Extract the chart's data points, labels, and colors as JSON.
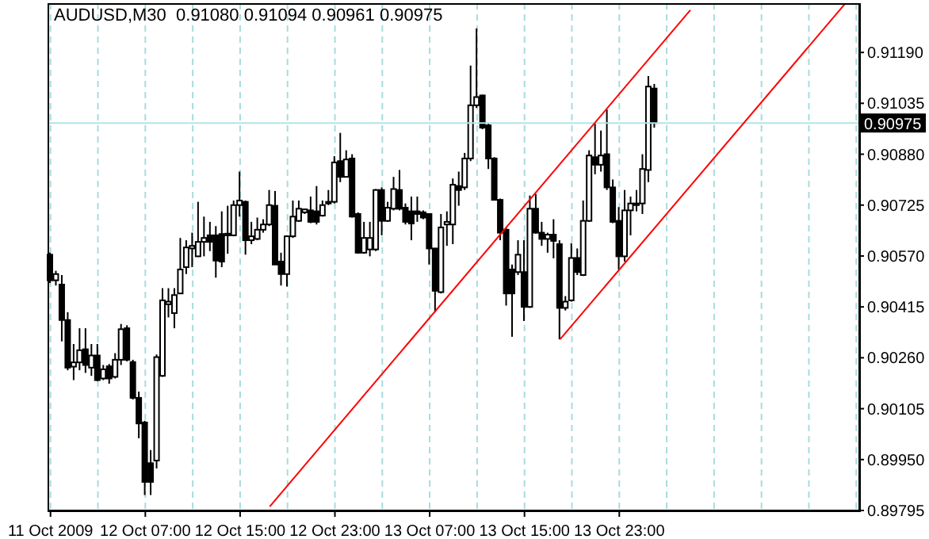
{
  "chart_data": {
    "type": "candlestick",
    "title": "AUDUSD,M30  0.91080 0.91094 0.90961 0.90975",
    "categories": [
      "11 Oct 2009",
      null,
      null,
      null,
      null,
      null,
      null,
      null,
      null,
      null,
      null,
      null,
      null,
      null,
      null,
      null,
      "12 Oct 07:00",
      null,
      null,
      null,
      null,
      null,
      null,
      null,
      null,
      null,
      null,
      null,
      null,
      null,
      null,
      null,
      "12 Oct 15:00",
      null,
      null,
      null,
      null,
      null,
      null,
      null,
      null,
      null,
      null,
      null,
      null,
      null,
      null,
      null,
      "12 Oct 23:00",
      null,
      null,
      null,
      null,
      null,
      null,
      null,
      null,
      null,
      null,
      null,
      null,
      null,
      null,
      null,
      "13 Oct 07:00",
      null,
      null,
      null,
      null,
      null,
      null,
      null,
      null,
      null,
      null,
      null,
      null,
      null,
      null,
      null,
      "13 Oct 15:00",
      null,
      null,
      null,
      null,
      null,
      null,
      null,
      null,
      null,
      null,
      null,
      null,
      null,
      null,
      null,
      "13 Oct 23:00",
      null,
      null,
      null,
      null,
      null,
      null,
      null,
      null,
      null,
      null,
      null,
      null,
      null,
      null,
      null,
      null,
      null,
      null,
      null,
      null,
      null,
      null,
      null,
      null,
      null,
      null,
      null,
      null,
      null,
      null,
      null,
      null,
      null,
      null,
      null,
      null,
      null,
      null,
      null,
      null
    ],
    "ohlc": [
      [
        0.90574,
        0.9058,
        0.90488,
        0.90496
      ],
      [
        0.90496,
        0.90525,
        0.9048,
        0.90515
      ],
      [
        0.90483,
        0.90512,
        0.9031,
        0.90375
      ],
      [
        0.90375,
        0.90399,
        0.90222,
        0.9023
      ],
      [
        0.90233,
        0.90302,
        0.90192,
        0.90246
      ],
      [
        0.90246,
        0.9035,
        0.90222,
        0.90283
      ],
      [
        0.90286,
        0.9035,
        0.90214,
        0.90238
      ],
      [
        0.9023,
        0.90302,
        0.90205,
        0.90267
      ],
      [
        0.90267,
        0.90302,
        0.90189,
        0.90192
      ],
      [
        0.90197,
        0.90238,
        0.90192,
        0.90225
      ],
      [
        0.90234,
        0.90241,
        0.90181,
        0.90197
      ],
      [
        0.90202,
        0.90274,
        0.90197,
        0.90254
      ],
      [
        0.90254,
        0.90363,
        0.90238,
        0.90347
      ],
      [
        0.9035,
        0.90359,
        0.90249,
        0.90254
      ],
      [
        0.90247,
        0.90254,
        0.90133,
        0.90138
      ],
      [
        0.90138,
        0.90157,
        0.90015,
        0.9006
      ],
      [
        0.90063,
        0.90068,
        0.89842,
        0.89882
      ],
      [
        0.89939,
        0.89979,
        0.89842,
        0.89882
      ],
      [
        0.89947,
        0.9027,
        0.89923,
        0.90262
      ],
      [
        0.90205,
        0.90472,
        0.90202,
        0.90435
      ],
      [
        0.90423,
        0.90472,
        0.90383,
        0.90431
      ],
      [
        0.90396,
        0.90472,
        0.9035,
        0.90451
      ],
      [
        0.90456,
        0.90625,
        0.90454,
        0.90529
      ],
      [
        0.90536,
        0.90618,
        0.90515,
        0.90596
      ],
      [
        0.90593,
        0.90641,
        0.90536,
        0.90601
      ],
      [
        0.90569,
        0.90735,
        0.90567,
        0.90613
      ],
      [
        0.90613,
        0.9069,
        0.90569,
        0.90625
      ],
      [
        0.90633,
        0.90674,
        0.90585,
        0.90613
      ],
      [
        0.90633,
        0.90661,
        0.90504,
        0.90556
      ],
      [
        0.90637,
        0.90706,
        0.90536,
        0.90553
      ],
      [
        0.90633,
        0.90723,
        0.90577,
        0.90638
      ],
      [
        0.90633,
        0.90739,
        0.9063,
        0.90725
      ],
      [
        0.90725,
        0.90827,
        0.9069,
        0.90739
      ],
      [
        0.90735,
        0.90739,
        0.90574,
        0.90618
      ],
      [
        0.90618,
        0.90674,
        0.90606,
        0.9063
      ],
      [
        0.90622,
        0.90687,
        0.90618,
        0.9065
      ],
      [
        0.9065,
        0.90682,
        0.90641,
        0.90666
      ],
      [
        0.90666,
        0.90771,
        0.90661,
        0.90725
      ],
      [
        0.90723,
        0.90768,
        0.90544,
        0.90544
      ],
      [
        0.90553,
        0.9058,
        0.9048,
        0.90515
      ],
      [
        0.90515,
        0.90633,
        0.90477,
        0.9063
      ],
      [
        0.9063,
        0.90739,
        0.90625,
        0.9069
      ],
      [
        0.90677,
        0.90739,
        0.90674,
        0.90714
      ],
      [
        0.90703,
        0.90714,
        0.90698,
        0.90712
      ],
      [
        0.90709,
        0.90751,
        0.9067,
        0.90674
      ],
      [
        0.90706,
        0.90783,
        0.90666,
        0.90674
      ],
      [
        0.90693,
        0.90739,
        0.9069,
        0.90725
      ],
      [
        0.9073,
        0.90771,
        0.90725,
        0.90735
      ],
      [
        0.90735,
        0.90874,
        0.9073,
        0.90855
      ],
      [
        0.90859,
        0.90945,
        0.90795,
        0.90811
      ],
      [
        0.90811,
        0.90892,
        0.90809,
        0.90864
      ],
      [
        0.90867,
        0.9088,
        0.90687,
        0.9069
      ],
      [
        0.90698,
        0.90703,
        0.90577,
        0.9058
      ],
      [
        0.9058,
        0.90674,
        0.90577,
        0.90625
      ],
      [
        0.9059,
        0.90674,
        0.90569,
        0.90625
      ],
      [
        0.9059,
        0.90774,
        0.90585,
        0.90771
      ],
      [
        0.90771,
        0.90779,
        0.90633,
        0.90677
      ],
      [
        0.90677,
        0.90735,
        0.90674,
        0.90717
      ],
      [
        0.90714,
        0.90811,
        0.90709,
        0.90774
      ],
      [
        0.90771,
        0.90832,
        0.90709,
        0.90714
      ],
      [
        0.90717,
        0.9073,
        0.90666,
        0.90674
      ],
      [
        0.90706,
        0.90751,
        0.90618,
        0.90669
      ],
      [
        0.90706,
        0.90751,
        0.90674,
        0.90698
      ],
      [
        0.90703,
        0.90709,
        0.90682,
        0.90687
      ],
      [
        0.90698,
        0.90698,
        0.90544,
        0.90593
      ],
      [
        0.90593,
        0.90593,
        0.90399,
        0.90464
      ],
      [
        0.9046,
        0.90698,
        0.90456,
        0.90657
      ],
      [
        0.90666,
        0.90706,
        0.90601,
        0.90674
      ],
      [
        0.90666,
        0.90806,
        0.90606,
        0.90787
      ],
      [
        0.90783,
        0.90827,
        0.90723,
        0.90771
      ],
      [
        0.90779,
        0.90884,
        0.90771,
        0.90867
      ],
      [
        0.90867,
        0.9115,
        0.90859,
        0.91029
      ],
      [
        0.91029,
        0.91263,
        0.91021,
        0.91054
      ],
      [
        0.91059,
        0.91061,
        0.90956,
        0.90961
      ],
      [
        0.90968,
        0.90973,
        0.90835,
        0.90867
      ],
      [
        0.90867,
        0.90871,
        0.90739,
        0.90741
      ],
      [
        0.90741,
        0.90745,
        0.90618,
        0.90641
      ],
      [
        0.9065,
        0.90657,
        0.90419,
        0.90456
      ],
      [
        0.90529,
        0.90544,
        0.90324,
        0.90456
      ],
      [
        0.90521,
        0.90618,
        0.90512,
        0.90574
      ],
      [
        0.90521,
        0.90618,
        0.90372,
        0.90415
      ],
      [
        0.90415,
        0.90754,
        0.90412,
        0.90714
      ],
      [
        0.90714,
        0.90759,
        0.90638,
        0.90641
      ],
      [
        0.90641,
        0.90674,
        0.90601,
        0.90622
      ],
      [
        0.90622,
        0.90641,
        0.9058,
        0.90635
      ],
      [
        0.90635,
        0.90682,
        0.90563,
        0.90616
      ],
      [
        0.90606,
        0.90618,
        0.90316,
        0.90412
      ],
      [
        0.90412,
        0.90448,
        0.90404,
        0.90431
      ],
      [
        0.90435,
        0.90609,
        0.90431,
        0.90564
      ],
      [
        0.90564,
        0.90593,
        0.90512,
        0.90521
      ],
      [
        0.90512,
        0.90739,
        0.90509,
        0.90677
      ],
      [
        0.90677,
        0.90892,
        0.90674,
        0.90876
      ],
      [
        0.90871,
        0.90973,
        0.90819,
        0.90848
      ],
      [
        0.90848,
        0.90952,
        0.90827,
        0.90876
      ],
      [
        0.9088,
        0.91016,
        0.90771,
        0.90779
      ],
      [
        0.90779,
        0.90803,
        0.9067,
        0.90674
      ],
      [
        0.90677,
        0.90719,
        0.90529,
        0.90569
      ],
      [
        0.90569,
        0.90771,
        0.90553,
        0.90709
      ],
      [
        0.90709,
        0.90751,
        0.90633,
        0.9073
      ],
      [
        0.90725,
        0.90771,
        0.90706,
        0.9073
      ],
      [
        0.9073,
        0.9088,
        0.90698,
        0.90835
      ],
      [
        0.90832,
        0.91118,
        0.90795,
        0.91086
      ],
      [
        0.9108,
        0.91094,
        0.90961,
        0.90975
      ],
      null,
      null,
      null,
      null,
      null,
      null,
      null,
      null,
      null,
      null,
      null,
      null,
      null,
      null,
      null,
      null,
      null,
      null,
      null,
      null,
      null,
      null,
      null,
      null,
      null,
      null,
      null,
      null,
      null,
      null,
      null,
      null,
      null,
      null
    ],
    "series": [
      {
        "type": "line",
        "color": "#ff0000",
        "values": [
          null,
          null,
          null,
          null,
          null,
          null,
          null,
          null,
          null,
          null,
          null,
          null,
          null,
          null,
          null,
          null,
          null,
          null,
          null,
          null,
          null,
          null,
          null,
          null,
          null,
          null,
          null,
          null,
          null,
          null,
          null,
          null,
          null,
          null,
          null,
          null,
          null,
          0.89807,
          null,
          null,
          null,
          null,
          null,
          null,
          null,
          null,
          null,
          null,
          null,
          null,
          null,
          null,
          null,
          null,
          null,
          null,
          null,
          null,
          null,
          null,
          null,
          null,
          null,
          null,
          null,
          null,
          null,
          null,
          null,
          null,
          null,
          null,
          null,
          null,
          null,
          null,
          null,
          null,
          null,
          null,
          null,
          null,
          null,
          null,
          null,
          null,
          null,
          null,
          null,
          null,
          null,
          null,
          null,
          null,
          null,
          null,
          null,
          null,
          null,
          null,
          null,
          null,
          null,
          null,
          null,
          null,
          null,
          null,
          0.91319,
          null,
          null,
          null,
          null,
          null,
          null,
          null,
          null,
          null,
          null,
          null,
          null,
          null,
          null,
          null,
          null,
          null,
          null,
          null,
          null,
          null,
          null,
          null,
          null,
          null,
          null,
          null,
          null
        ]
      },
      {
        "type": "line",
        "color": "#ff0000",
        "values": [
          null,
          null,
          null,
          null,
          null,
          null,
          null,
          null,
          null,
          null,
          null,
          null,
          null,
          null,
          null,
          null,
          null,
          null,
          null,
          null,
          null,
          null,
          null,
          null,
          null,
          null,
          null,
          null,
          null,
          null,
          null,
          null,
          null,
          null,
          null,
          null,
          null,
          null,
          null,
          null,
          null,
          null,
          null,
          null,
          null,
          null,
          null,
          null,
          null,
          null,
          null,
          null,
          null,
          null,
          null,
          null,
          null,
          null,
          null,
          null,
          null,
          null,
          null,
          null,
          null,
          null,
          null,
          null,
          null,
          null,
          null,
          null,
          null,
          null,
          null,
          null,
          null,
          null,
          null,
          null,
          null,
          null,
          null,
          null,
          null,
          null,
          0.90316,
          null,
          null,
          null,
          null,
          null,
          null,
          null,
          null,
          null,
          null,
          null,
          null,
          null,
          null,
          null,
          null,
          null,
          null,
          null,
          null,
          null,
          null,
          null,
          null,
          null,
          null,
          null,
          null,
          null,
          null,
          null,
          null,
          null,
          null,
          null,
          null,
          null,
          null,
          null,
          null,
          null,
          null,
          null,
          null,
          null,
          null,
          null,
          0.91336,
          null,
          null
        ]
      }
    ],
    "ylim": [
      0.89795,
      0.9134
    ],
    "yticks": [
      {
        "value": 0.9119,
        "label": "0.91190"
      },
      0.91035,
      {
        "value": 0.9088,
        "label": "0.90880"
      },
      0.90725,
      {
        "value": 0.9057,
        "label": "0.90570"
      },
      0.90415,
      {
        "value": 0.9026,
        "label": "0.90260"
      },
      0.90105,
      {
        "value": 0.8995,
        "label": "0.89950"
      },
      0.89795
    ],
    "ref_lines": [
      {
        "axis": "y",
        "value": 0.90975,
        "label": "0.90975",
        "color": "#b0e4e4"
      }
    ],
    "grid": true
  }
}
